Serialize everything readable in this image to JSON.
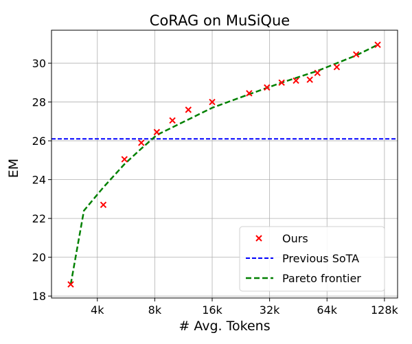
{
  "chart_data": {
    "type": "scatter",
    "title": "CoRAG on MuSiQue",
    "xlabel": "# Avg. Tokens",
    "ylabel": "EM",
    "x_scale": "log2",
    "xlim": [
      2300,
      150000
    ],
    "ylim": [
      17.9,
      31.7
    ],
    "x_ticks": [
      {
        "value": 4000,
        "label": "4k"
      },
      {
        "value": 8000,
        "label": "8k"
      },
      {
        "value": 16000,
        "label": "16k"
      },
      {
        "value": 32000,
        "label": "32k"
      },
      {
        "value": 64000,
        "label": "64k"
      },
      {
        "value": 128000,
        "label": "128k"
      }
    ],
    "y_ticks": [
      18,
      20,
      22,
      24,
      26,
      28,
      30
    ],
    "grid": true,
    "legend_position": "lower-right",
    "series": [
      {
        "name": "Ours",
        "kind": "scatter",
        "marker": "x",
        "color": "#ff0000",
        "points": [
          {
            "x": 2900,
            "y": 18.6
          },
          {
            "x": 4300,
            "y": 22.7
          },
          {
            "x": 5550,
            "y": 25.05
          },
          {
            "x": 6800,
            "y": 25.9
          },
          {
            "x": 8200,
            "y": 26.45
          },
          {
            "x": 9900,
            "y": 27.05
          },
          {
            "x": 12000,
            "y": 27.6
          },
          {
            "x": 16000,
            "y": 28.0
          },
          {
            "x": 25000,
            "y": 28.45
          },
          {
            "x": 31000,
            "y": 28.75
          },
          {
            "x": 37000,
            "y": 29.0
          },
          {
            "x": 44000,
            "y": 29.1
          },
          {
            "x": 52000,
            "y": 29.15
          },
          {
            "x": 57000,
            "y": 29.5
          },
          {
            "x": 72000,
            "y": 29.8
          },
          {
            "x": 91000,
            "y": 30.45
          },
          {
            "x": 118000,
            "y": 30.95
          }
        ]
      },
      {
        "name": "Previous SoTA",
        "kind": "hline",
        "style": "dashed",
        "color": "#0000ff",
        "y": 26.1
      },
      {
        "name": "Pareto frontier",
        "kind": "line",
        "style": "dashed",
        "color": "#008000",
        "points": [
          {
            "x": 2900,
            "y": 18.6
          },
          {
            "x": 3400,
            "y": 22.4
          },
          {
            "x": 4300,
            "y": 23.6
          },
          {
            "x": 5550,
            "y": 24.8
          },
          {
            "x": 6800,
            "y": 25.6
          },
          {
            "x": 8200,
            "y": 26.3
          },
          {
            "x": 16000,
            "y": 27.7
          },
          {
            "x": 25000,
            "y": 28.4
          },
          {
            "x": 37000,
            "y": 29.0
          },
          {
            "x": 57000,
            "y": 29.6
          },
          {
            "x": 91000,
            "y": 30.4
          },
          {
            "x": 118000,
            "y": 30.95
          }
        ]
      }
    ]
  }
}
